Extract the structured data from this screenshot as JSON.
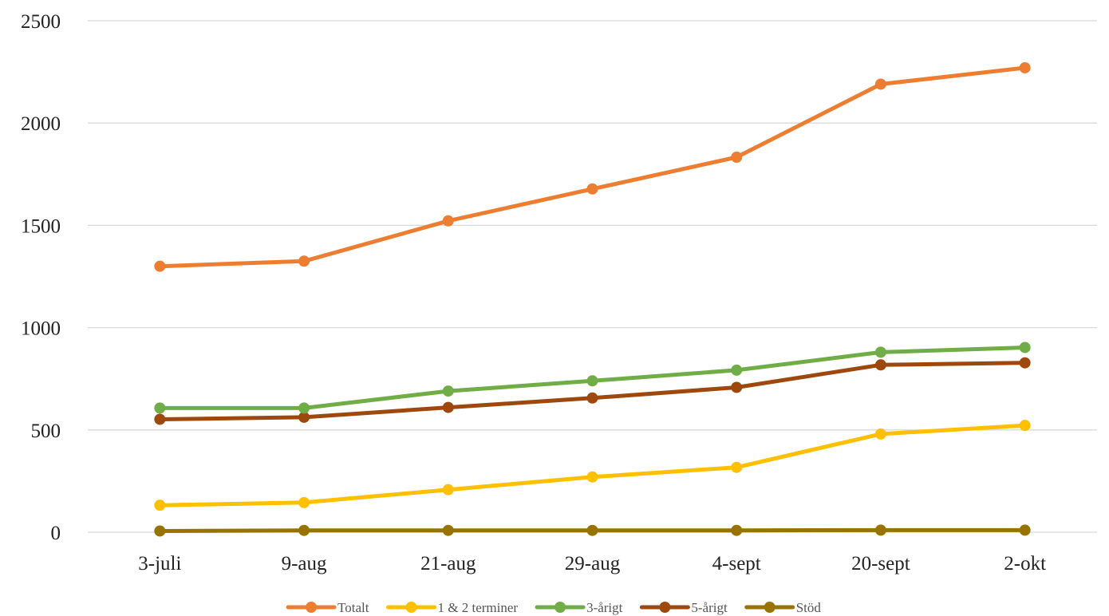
{
  "chart_data": {
    "type": "line",
    "title": "",
    "xlabel": "",
    "ylabel": "",
    "categories": [
      "3-juli",
      "9-aug",
      "21-aug",
      "29-aug",
      "4-sept",
      "20-sept",
      "2-okt"
    ],
    "ylim": [
      0,
      2500
    ],
    "yticks": [
      0,
      500,
      1000,
      1500,
      2000,
      2500
    ],
    "grid": "horizontal",
    "legend_position": "bottom",
    "series": [
      {
        "name": "Totalt",
        "color": "#ED7D31",
        "values": [
          1300,
          1325,
          1522,
          1678,
          1833,
          2190,
          2270
        ]
      },
      {
        "name": "1 & 2 terminer",
        "color": "#FFC000",
        "values": [
          132,
          145,
          208,
          270,
          317,
          480,
          522
        ]
      },
      {
        "name": "3-årigt",
        "color": "#70AD47",
        "values": [
          607,
          607,
          690,
          740,
          792,
          880,
          903
        ]
      },
      {
        "name": "5-årigt",
        "color": "#9E480E",
        "values": [
          552,
          562,
          610,
          656,
          708,
          818,
          828
        ]
      },
      {
        "name": "Stöd",
        "color": "#997300",
        "values": [
          6,
          9,
          9,
          9,
          9,
          10,
          10
        ]
      }
    ]
  }
}
